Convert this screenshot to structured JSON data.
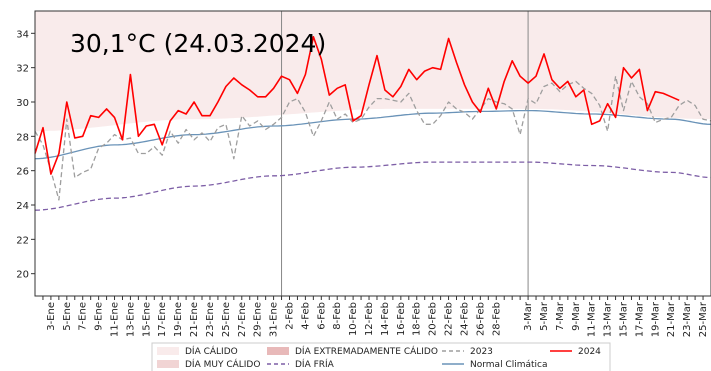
{
  "chart_data": {
    "type": "line",
    "annotation": "30,1°C (24.03.2024)",
    "ylim": [
      18.7,
      35.3
    ],
    "yticks": [
      20,
      22,
      24,
      26,
      28,
      30,
      32,
      34
    ],
    "xlim": [
      0,
      85
    ],
    "month_separators": [
      31,
      62
    ],
    "x_ticks": [
      {
        "x": 2,
        "label": "3-Ene"
      },
      {
        "x": 4,
        "label": "5-Ene"
      },
      {
        "x": 6,
        "label": "7-Ene"
      },
      {
        "x": 8,
        "label": "9-Ene"
      },
      {
        "x": 10,
        "label": "11-Ene"
      },
      {
        "x": 12,
        "label": "13-Ene"
      },
      {
        "x": 14,
        "label": "15-Ene"
      },
      {
        "x": 16,
        "label": "17-Ene"
      },
      {
        "x": 18,
        "label": "19-Ene"
      },
      {
        "x": 20,
        "label": "21-Ene"
      },
      {
        "x": 22,
        "label": "23-Ene"
      },
      {
        "x": 24,
        "label": "25-Ene"
      },
      {
        "x": 26,
        "label": "27-Ene"
      },
      {
        "x": 28,
        "label": "29-Ene"
      },
      {
        "x": 30,
        "label": "31-Ene"
      },
      {
        "x": 32,
        "label": "2-Feb"
      },
      {
        "x": 34,
        "label": "4-Feb"
      },
      {
        "x": 36,
        "label": "6-Feb"
      },
      {
        "x": 38,
        "label": "8-Feb"
      },
      {
        "x": 40,
        "label": "10-Feb"
      },
      {
        "x": 42,
        "label": "12-Feb"
      },
      {
        "x": 44,
        "label": "14-Feb"
      },
      {
        "x": 46,
        "label": "16-Feb"
      },
      {
        "x": 48,
        "label": "18-Feb"
      },
      {
        "x": 50,
        "label": "20-Feb"
      },
      {
        "x": 52,
        "label": "22-Feb"
      },
      {
        "x": 54,
        "label": "24-Feb"
      },
      {
        "x": 56,
        "label": "26-Feb"
      },
      {
        "x": 58,
        "label": "28-Feb"
      },
      {
        "x": 62,
        "label": "3-Mar"
      },
      {
        "x": 64,
        "label": "5-Mar"
      },
      {
        "x": 66,
        "label": "7-Mar"
      },
      {
        "x": 68,
        "label": "9-Mar"
      },
      {
        "x": 70,
        "label": "11-Mar"
      },
      {
        "x": 72,
        "label": "13-Mar"
      },
      {
        "x": 74,
        "label": "15-Mar"
      },
      {
        "x": 76,
        "label": "17-Mar"
      },
      {
        "x": 78,
        "label": "19-Mar"
      },
      {
        "x": 80,
        "label": "21-Mar"
      },
      {
        "x": 82,
        "label": "23-Mar"
      },
      {
        "x": 84,
        "label": "25-Mar"
      }
    ],
    "bands": [
      {
        "name": "DÍA EXTREMADAMENTE CÁLIDO",
        "color": "#e8b9b9",
        "lower_key": [
          0,
          30.9,
          20,
          31.6,
          45,
          32.2,
          62,
          32.1,
          85,
          31.4
        ]
      },
      {
        "name": "DÍA MUY CÁLIDO",
        "color": "#f1d4d4",
        "lower_key": [
          0,
          29.6,
          20,
          30.3,
          45,
          30.9,
          62,
          30.9,
          85,
          30.2
        ]
      },
      {
        "name": "DÍA CÁLIDO",
        "color": "#f9ebeb",
        "lower_key": [
          0,
          28.3,
          20,
          29.0,
          45,
          29.6,
          62,
          29.6,
          85,
          29.0
        ]
      }
    ],
    "series": [
      {
        "name": "Normal Climática",
        "color": "#6a93b8",
        "style": "solid",
        "key": [
          0,
          26.7,
          10,
          27.5,
          20,
          28.1,
          30,
          28.6,
          40,
          29.0,
          50,
          29.35,
          56,
          29.45,
          62,
          29.5,
          70,
          29.3,
          80,
          29.0,
          85,
          28.7
        ]
      },
      {
        "name": "DÍA FRÍA",
        "color": "#7d5ea6",
        "style": "dashed",
        "key": [
          0,
          23.7,
          10,
          24.4,
          20,
          25.1,
          30,
          25.7,
          40,
          26.2,
          50,
          26.5,
          56,
          26.5,
          62,
          26.5,
          70,
          26.3,
          80,
          25.9,
          85,
          25.6
        ]
      },
      {
        "name": "2023",
        "color": "#9e9e9e",
        "style": "dashed",
        "values": [
          28.3,
          27.5,
          26.0,
          24.3,
          29.0,
          25.6,
          25.9,
          26.1,
          27.3,
          27.6,
          28.1,
          27.8,
          27.9,
          27.0,
          27.0,
          27.4,
          26.9,
          28.3,
          27.6,
          28.4,
          27.8,
          28.2,
          27.7,
          28.5,
          28.7,
          26.7,
          29.2,
          28.6,
          28.9,
          28.4,
          28.7,
          29.1,
          30.0,
          30.2,
          29.4,
          28.0,
          28.9,
          30.0,
          29.0,
          29.3,
          28.8,
          29.0,
          29.7,
          30.2,
          30.2,
          30.1,
          30.0,
          30.5,
          29.5,
          28.7,
          28.7,
          29.2,
          30.0,
          29.6,
          29.4,
          29.0,
          29.6,
          30.2,
          30.0,
          29.9,
          29.6,
          28.1,
          30.2,
          29.9,
          30.9,
          31.1,
          30.6,
          31.0,
          31.2,
          30.8,
          30.5,
          29.8,
          28.3,
          31.5,
          29.5,
          31.2,
          30.3,
          29.9,
          28.8,
          29.0,
          29.1,
          29.8,
          30.1,
          29.8,
          29.0,
          28.9
        ]
      },
      {
        "name": "2024",
        "color": "#ff0000",
        "style": "solid",
        "values": [
          27.0,
          28.5,
          25.8,
          27.0,
          30.0,
          27.9,
          28.0,
          29.2,
          29.1,
          29.6,
          29.1,
          27.8,
          31.6,
          28.0,
          28.6,
          28.7,
          27.5,
          28.9,
          29.5,
          29.3,
          30.0,
          29.2,
          29.2,
          30.0,
          30.9,
          31.4,
          31.0,
          30.7,
          30.3,
          30.3,
          30.8,
          31.5,
          31.3,
          30.5,
          31.6,
          33.8,
          32.5,
          30.4,
          30.8,
          31.0,
          28.9,
          29.2,
          31.0,
          32.7,
          30.7,
          30.3,
          30.9,
          31.9,
          31.3,
          31.8,
          32.0,
          31.9,
          33.7,
          32.3,
          31.0,
          30.0,
          29.4,
          30.8,
          29.6,
          31.2,
          32.4,
          31.5,
          31.1,
          31.5,
          32.8,
          31.3,
          30.8,
          31.2,
          30.3,
          30.7,
          28.7,
          28.9,
          29.9,
          29.1,
          32.0,
          31.4,
          31.9,
          29.5,
          30.6,
          30.5,
          30.3,
          30.1
        ]
      }
    ],
    "legend": {
      "placement": "bottom",
      "entries": [
        {
          "label": "DÍA CÁLIDO",
          "kind": "patch",
          "color": "#f9ebeb"
        },
        {
          "label": "DÍA MUY CÁLIDO",
          "kind": "patch",
          "color": "#f1d4d4"
        },
        {
          "label": "DÍA EXTREMADAMENTE CÁLIDO",
          "kind": "patch",
          "color": "#e8b9b9"
        },
        {
          "label": "DÍA FRÍA",
          "kind": "dashed",
          "color": "#7d5ea6"
        },
        {
          "label": "2023",
          "kind": "dashed",
          "color": "#9e9e9e"
        },
        {
          "label": "Normal Climática",
          "kind": "solid",
          "color": "#6a93b8"
        },
        {
          "label": "2024",
          "kind": "solid",
          "color": "#ff0000"
        }
      ]
    }
  }
}
